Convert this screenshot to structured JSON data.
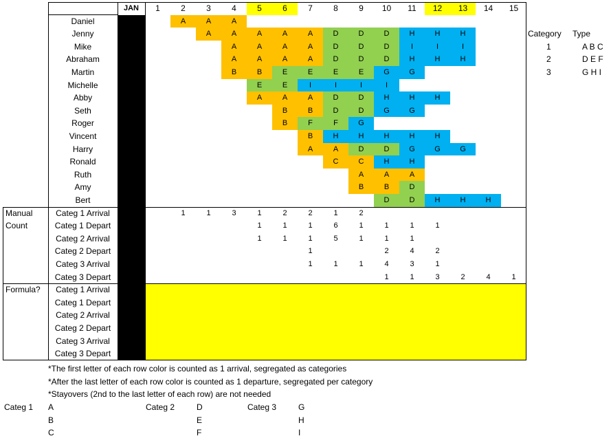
{
  "colors": {
    "A": "#ffc000",
    "B": "#ffc000",
    "C": "#ffc000",
    "D": "#92d050",
    "E": "#92d050",
    "F": "#92d050",
    "G": "#00b0f0",
    "H": "#00b0f0",
    "I": "#00b0f0",
    "highlight": "#ffff00"
  },
  "header": {
    "month": "JAN",
    "days": [
      "1",
      "2",
      "3",
      "4",
      "5",
      "6",
      "7",
      "8",
      "9",
      "10",
      "11",
      "12",
      "13",
      "14",
      "15"
    ],
    "highlight_days": [
      5,
      6,
      12,
      13
    ]
  },
  "roster": [
    {
      "name": "Daniel",
      "start": 2,
      "letters": [
        "A",
        "A",
        "A"
      ]
    },
    {
      "name": "Jenny",
      "start": 3,
      "letters": [
        "A",
        "A",
        "A",
        "A",
        "A",
        "D",
        "D",
        "D",
        "H",
        "H",
        "H"
      ]
    },
    {
      "name": "Mike",
      "start": 4,
      "letters": [
        "A",
        "A",
        "A",
        "A",
        "D",
        "D",
        "D",
        "I",
        "I",
        "I"
      ]
    },
    {
      "name": "Abraham",
      "start": 4,
      "letters": [
        "A",
        "A",
        "A",
        "A",
        "D",
        "D",
        "D",
        "H",
        "H",
        "H"
      ]
    },
    {
      "name": "Martin",
      "start": 4,
      "letters": [
        "B",
        "B",
        "E",
        "E",
        "E",
        "E",
        "G",
        "G"
      ]
    },
    {
      "name": "Michelle",
      "start": 5,
      "letters": [
        "E",
        "E",
        "I",
        "I",
        "I",
        "I"
      ]
    },
    {
      "name": "Abby",
      "start": 5,
      "letters": [
        "A",
        "A",
        "A",
        "D",
        "D",
        "H",
        "H",
        "H"
      ]
    },
    {
      "name": "Seth",
      "start": 6,
      "letters": [
        "B",
        "B",
        "D",
        "D",
        "G",
        "G"
      ]
    },
    {
      "name": "Roger",
      "start": 6,
      "letters": [
        "B",
        "F",
        "F",
        "G"
      ]
    },
    {
      "name": "Vincent",
      "start": 7,
      "letters": [
        "B",
        "H",
        "H",
        "H",
        "H",
        "H"
      ]
    },
    {
      "name": "Harry",
      "start": 7,
      "letters": [
        "A",
        "A",
        "D",
        "D",
        "G",
        "G",
        "G"
      ]
    },
    {
      "name": "Ronald",
      "start": 8,
      "letters": [
        "C",
        "C",
        "H",
        "H"
      ]
    },
    {
      "name": "Ruth",
      "start": 9,
      "letters": [
        "A",
        "A",
        "A"
      ]
    },
    {
      "name": "Amy",
      "start": 9,
      "letters": [
        "B",
        "B",
        "D"
      ]
    },
    {
      "name": "Bert",
      "start": 10,
      "letters": [
        "D",
        "D",
        "H",
        "H",
        "H"
      ]
    }
  ],
  "manual": {
    "label": "Manual\nCount",
    "rows": [
      {
        "label": "Categ 1 Arrival",
        "values": [
          "",
          "1",
          "1",
          "3",
          "1",
          "2",
          "2",
          "1",
          "2",
          "",
          "",
          "",
          "",
          "",
          ""
        ]
      },
      {
        "label": "Categ 1 Depart",
        "values": [
          "",
          "",
          "",
          "",
          "1",
          "1",
          "1",
          "6",
          "1",
          "1",
          "1",
          "1",
          "",
          "",
          ""
        ]
      },
      {
        "label": "Categ 2 Arrival",
        "values": [
          "",
          "",
          "",
          "",
          "1",
          "1",
          "1",
          "5",
          "1",
          "1",
          "1",
          "",
          "",
          "",
          ""
        ]
      },
      {
        "label": "Categ 2 Depart",
        "values": [
          "",
          "",
          "",
          "",
          "",
          "",
          "1",
          "",
          "",
          "2",
          "4",
          "2",
          "",
          "",
          ""
        ]
      },
      {
        "label": "Categ 3 Arrival",
        "values": [
          "",
          "",
          "",
          "",
          "",
          "",
          "1",
          "1",
          "1",
          "4",
          "3",
          "1",
          "",
          "",
          ""
        ]
      },
      {
        "label": "Categ 3 Depart",
        "values": [
          "",
          "",
          "",
          "",
          "",
          "",
          "",
          "",
          "",
          "1",
          "1",
          "3",
          "2",
          "4",
          "1"
        ]
      }
    ]
  },
  "formula": {
    "label": "Formula?",
    "rows": [
      "Categ 1 Arrival",
      "Categ 1 Depart",
      "Categ 2 Arrival",
      "Categ 2 Depart",
      "Categ 3 Arrival",
      "Categ 3 Depart"
    ]
  },
  "legend": {
    "headers": [
      "Category",
      "Type"
    ],
    "rows": [
      {
        "cat": "1",
        "type": "A B C"
      },
      {
        "cat": "2",
        "type": "D E F"
      },
      {
        "cat": "3",
        "type": "G H I"
      }
    ]
  },
  "notes": [
    "*The first letter of each row color is counted as 1 arrival, segregated as categories",
    "*After the last letter of each row color is counted as 1 departure, segregated per category",
    "*Stayovers (2nd to the last letter of each row) are not needed"
  ],
  "categ_list": [
    {
      "label": "Categ 1",
      "items": [
        "A",
        "B",
        "C"
      ]
    },
    {
      "label": "Categ 2",
      "items": [
        "D",
        "E",
        "F"
      ]
    },
    {
      "label": "Categ 3",
      "items": [
        "G",
        "H",
        "I"
      ]
    }
  ]
}
